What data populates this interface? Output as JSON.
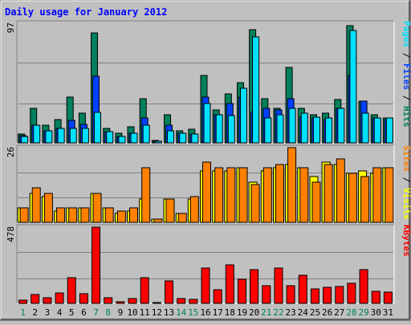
{
  "chart_data": {
    "type": "bar",
    "title": "Daily usage for January 2012",
    "categories": [
      "1",
      "2",
      "3",
      "4",
      "5",
      "6",
      "7",
      "8",
      "9",
      "10",
      "11",
      "12",
      "13",
      "14",
      "15",
      "16",
      "17",
      "18",
      "19",
      "20",
      "21",
      "22",
      "23",
      "24",
      "25",
      "26",
      "27",
      "28",
      "29",
      "30",
      "31"
    ],
    "weekend_days": [
      "1",
      "7",
      "8",
      "14",
      "15",
      "21",
      "22",
      "28",
      "29"
    ],
    "grid": true,
    "panels": [
      {
        "id": "hits",
        "max_label": "97",
        "ylim": [
          0,
          97
        ],
        "legend": [
          "Pages",
          "Files",
          "Hits"
        ],
        "series": [
          {
            "name": "Hits",
            "color": "#00805c",
            "values": [
              7,
              28,
              14,
              19,
              37,
              24,
              89,
              12,
              8,
              13,
              36,
              2,
              23,
              10,
              11,
              55,
              27,
              40,
              49,
              92,
              36,
              28,
              61,
              28,
              23,
              24,
              35,
              95,
              34,
              23,
              20
            ]
          },
          {
            "name": "Files",
            "color": "#0040ff",
            "values": [
              6,
              14,
              10,
              12,
              18,
              15,
              54,
              9,
              5,
              8,
              20,
              1,
              14,
              8,
              7,
              37,
              23,
              32,
              37,
              25,
              28,
              27,
              36,
              21,
              20,
              19,
              28,
              55,
              34,
              20,
              19
            ]
          },
          {
            "name": "Pages",
            "color": "#00e0ff",
            "values": [
              5,
              14,
              10,
              12,
              12,
              12,
              25,
              9,
              5,
              8,
              14,
              1,
              10,
              8,
              7,
              32,
              23,
              22,
              44,
              86,
              20,
              23,
              28,
              24,
              21,
              20,
              28,
              91,
              24,
              20,
              20
            ]
          }
        ]
      },
      {
        "id": "visits",
        "max_label": "26",
        "ylim": [
          0,
          26
        ],
        "legend": [
          "Sites",
          "Visits"
        ],
        "series": [
          {
            "name": "Visits",
            "color": "#ffff00",
            "values": [
              5,
              10,
              9,
              4,
              5,
              5,
              10,
              5,
              3,
              4,
              8,
              1,
              8,
              3,
              8,
              18,
              18,
              18,
              19,
              14,
              18,
              19,
              20,
              19,
              16,
              21,
              20,
              17,
              18,
              17,
              19
            ]
          },
          {
            "name": "Sites",
            "color": "#ff8000",
            "values": [
              5,
              12,
              10,
              5,
              5,
              5,
              10,
              5,
              4,
              5,
              19,
              1,
              8,
              3,
              9,
              21,
              19,
              19,
              19,
              13,
              19,
              20,
              26,
              19,
              14,
              20,
              22,
              17,
              16,
              19,
              19
            ]
          }
        ]
      },
      {
        "id": "kbytes",
        "max_label": "478",
        "ylim": [
          0,
          478
        ],
        "legend": [
          "KBytes"
        ],
        "series": [
          {
            "name": "KBytes",
            "color": "#ff0000",
            "values": [
              20,
              55,
              35,
              65,
              160,
              60,
              478,
              35,
              10,
              30,
              160,
              2,
              140,
              30,
              25,
              220,
              85,
              240,
              150,
              210,
              110,
              220,
              110,
              175,
              90,
              100,
              105,
              125,
              210,
              75,
              70
            ]
          }
        ]
      }
    ]
  }
}
